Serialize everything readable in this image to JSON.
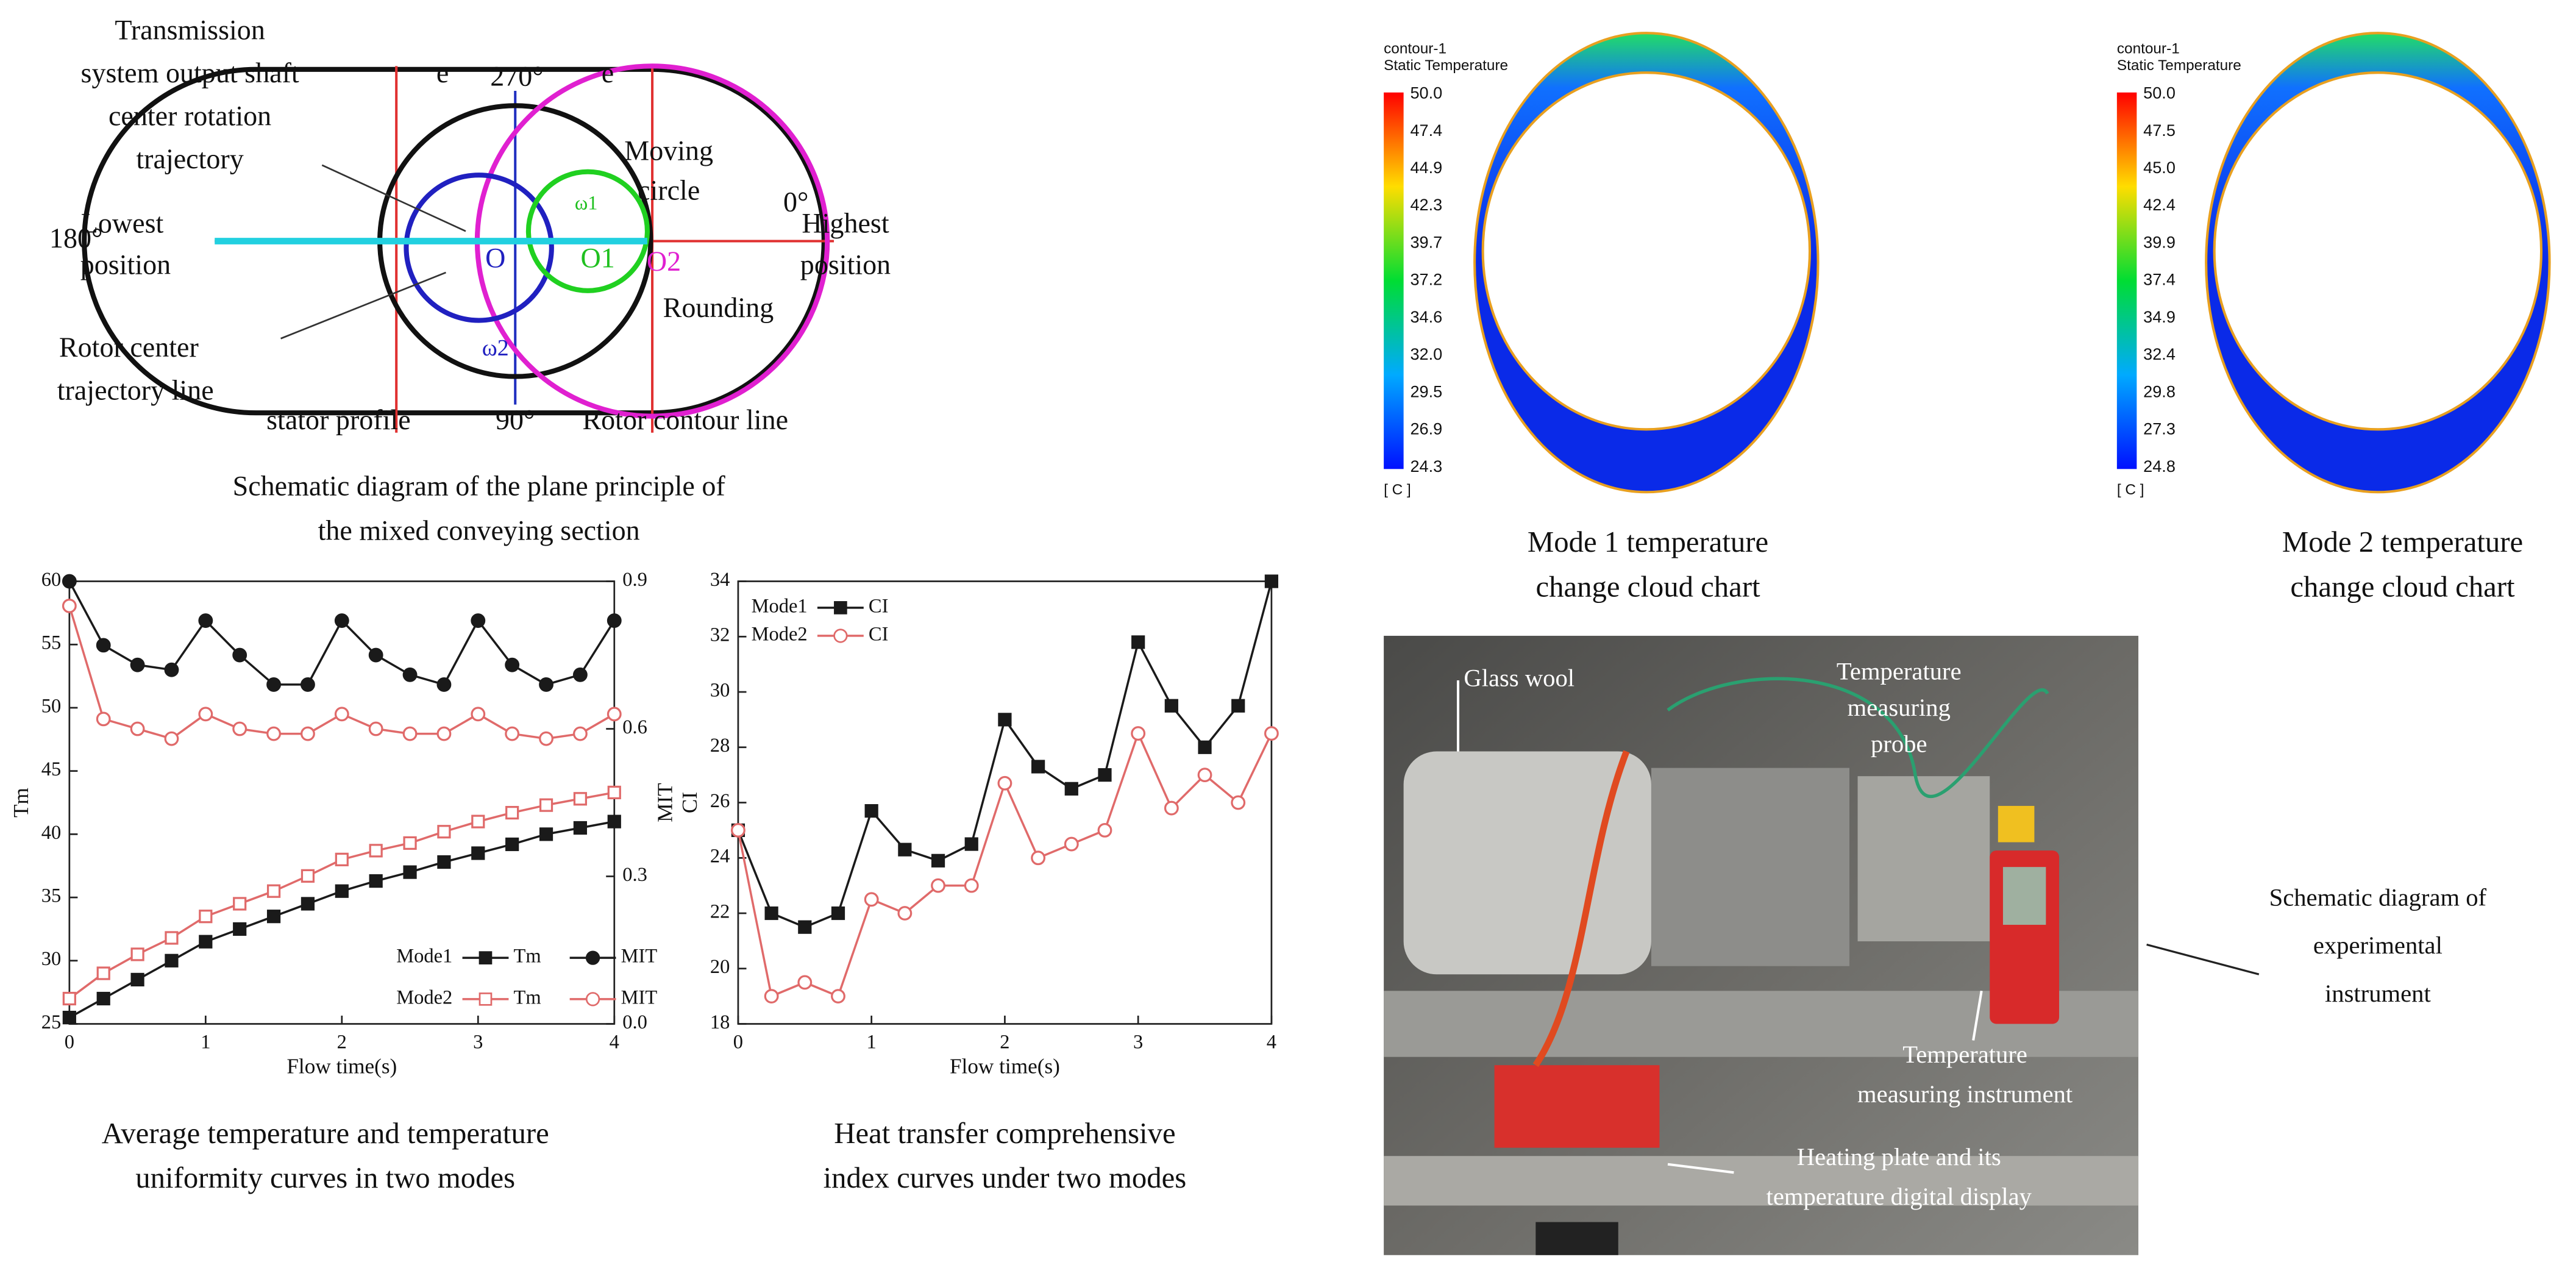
{
  "diagram": {
    "transmission": [
      "Transmission",
      "system output shaft",
      "center rotation",
      "trajectory"
    ],
    "e_left": "e",
    "angle_top": "270°",
    "e_right": "e",
    "moving_circle": [
      "Moving",
      "circle"
    ],
    "angle_right": "0°",
    "highest": [
      "Highest",
      "position"
    ],
    "angle_left": "180°",
    "lowest": [
      "Lowest",
      "position"
    ],
    "center_o": "O",
    "center_o1": "O1",
    "center_o2": "O2",
    "omega1": "ω1",
    "omega2": "ω2",
    "rounding": "Rounding",
    "rotor_center": [
      "Rotor center",
      "trajectory line"
    ],
    "stator": "stator profile",
    "angle_bottom": "90°",
    "rotor_contour": "Rotor contour line",
    "caption": [
      "Schematic diagram of the plane principle of",
      "the mixed conveying section"
    ]
  },
  "contours": [
    {
      "title": "contour-1",
      "quantity": "Static Temperature",
      "unit": "[ C ]",
      "levels": [
        "50.0",
        "47.4",
        "44.9",
        "42.3",
        "39.7",
        "37.2",
        "34.6",
        "32.0",
        "29.5",
        "26.9",
        "24.3"
      ],
      "caption": [
        "Mode 1 temperature",
        "change cloud chart"
      ]
    },
    {
      "title": "contour-1",
      "quantity": "Static Temperature",
      "unit": "[ C ]",
      "levels": [
        "50.0",
        "47.5",
        "45.0",
        "42.4",
        "39.9",
        "37.4",
        "34.9",
        "32.4",
        "29.8",
        "27.3",
        "24.8"
      ],
      "caption": [
        "Mode 2 temperature",
        "change cloud chart"
      ]
    }
  ],
  "photo": {
    "glass_wool": "Glass wool",
    "probe": [
      "Temperature",
      "measuring",
      "probe"
    ],
    "instrument": [
      "Temperature",
      "measuring instrument"
    ],
    "heating": [
      "Heating plate and its",
      "temperature digital display"
    ],
    "side_caption": [
      "Schematic diagram of",
      "experimental",
      "instrument"
    ]
  },
  "chart_data": [
    {
      "type": "line",
      "x": [
        0,
        0.25,
        0.5,
        0.75,
        1,
        1.25,
        1.5,
        1.75,
        2,
        2.25,
        2.5,
        2.75,
        3,
        3.25,
        3.5,
        3.75,
        4
      ],
      "xlim": [
        0,
        4
      ],
      "xticks": [
        0,
        1,
        2,
        3,
        4
      ],
      "ylim": [
        25,
        60
      ],
      "yticks": [
        25,
        30,
        35,
        40,
        45,
        50,
        55,
        60
      ],
      "y2lim": [
        0,
        0.9
      ],
      "y2ticks": [
        {
          "value": 0,
          "label": "0.0"
        },
        0.3,
        0.6,
        0.9
      ],
      "xlabel": "Flow time(s)",
      "ylabel": "Tm",
      "y2label": "MIT",
      "groups": [
        "Mode1",
        "Mode2"
      ],
      "series": [
        {
          "name": "Tm",
          "group": 0,
          "color": "#1a1a1a",
          "marker": "square",
          "filled": true,
          "values": [
            25.5,
            27,
            28.5,
            30,
            31.5,
            32.5,
            33.5,
            34.5,
            35.5,
            36.3,
            37,
            37.8,
            38.5,
            39.2,
            40,
            40.5,
            41
          ]
        },
        {
          "name": "MIT",
          "group": 0,
          "axis": "y2",
          "color": "#1a1a1a",
          "marker": "circle",
          "filled": true,
          "values": [
            0.9,
            0.77,
            0.73,
            0.72,
            0.82,
            0.75,
            0.69,
            0.69,
            0.82,
            0.75,
            0.71,
            0.69,
            0.82,
            0.73,
            0.69,
            0.71,
            0.82
          ]
        },
        {
          "name": "Tm",
          "group": 1,
          "color": "#e06a6a",
          "marker": "square",
          "filled": false,
          "values": [
            27,
            29,
            30.5,
            31.8,
            33.5,
            34.5,
            35.5,
            36.7,
            38,
            38.7,
            39.3,
            40.2,
            41,
            41.7,
            42.3,
            42.8,
            43.3
          ]
        },
        {
          "name": "MIT",
          "group": 1,
          "axis": "y2",
          "color": "#e06a6a",
          "marker": "circle",
          "filled": false,
          "values": [
            0.85,
            0.62,
            0.6,
            0.58,
            0.63,
            0.6,
            0.59,
            0.59,
            0.63,
            0.6,
            0.59,
            0.59,
            0.63,
            0.59,
            0.58,
            0.59,
            0.63
          ]
        }
      ],
      "caption": [
        "Average temperature and temperature",
        "uniformity curves in two modes"
      ]
    },
    {
      "type": "line",
      "x": [
        0,
        0.25,
        0.5,
        0.75,
        1,
        1.25,
        1.5,
        1.75,
        2,
        2.25,
        2.5,
        2.75,
        3,
        3.25,
        3.5,
        3.75,
        4
      ],
      "xlim": [
        0,
        4
      ],
      "xticks": [
        0,
        1,
        2,
        3,
        4
      ],
      "ylim": [
        18,
        34
      ],
      "yticks": [
        18,
        20,
        22,
        24,
        26,
        28,
        30,
        32,
        34
      ],
      "xlabel": "Flow time(s)",
      "ylabel": "CI",
      "groups": [
        "Mode1",
        "Mode2"
      ],
      "series": [
        {
          "name": "CI",
          "group": 0,
          "color": "#1a1a1a",
          "marker": "square",
          "filled": true,
          "values": [
            25,
            22,
            21.5,
            22,
            25.7,
            24.3,
            23.9,
            24.5,
            29,
            27.3,
            26.5,
            27,
            31.8,
            29.5,
            28,
            29.5,
            34
          ]
        },
        {
          "name": "CI",
          "group": 1,
          "color": "#e06a6a",
          "marker": "circle",
          "filled": false,
          "values": [
            25,
            19,
            19.5,
            19,
            22.5,
            22,
            23,
            23,
            26.7,
            24,
            24.5,
            25,
            28.5,
            25.8,
            27,
            26,
            28.5
          ]
        }
      ],
      "caption": [
        "Heat transfer comprehensive",
        "index curves under two modes"
      ]
    }
  ]
}
